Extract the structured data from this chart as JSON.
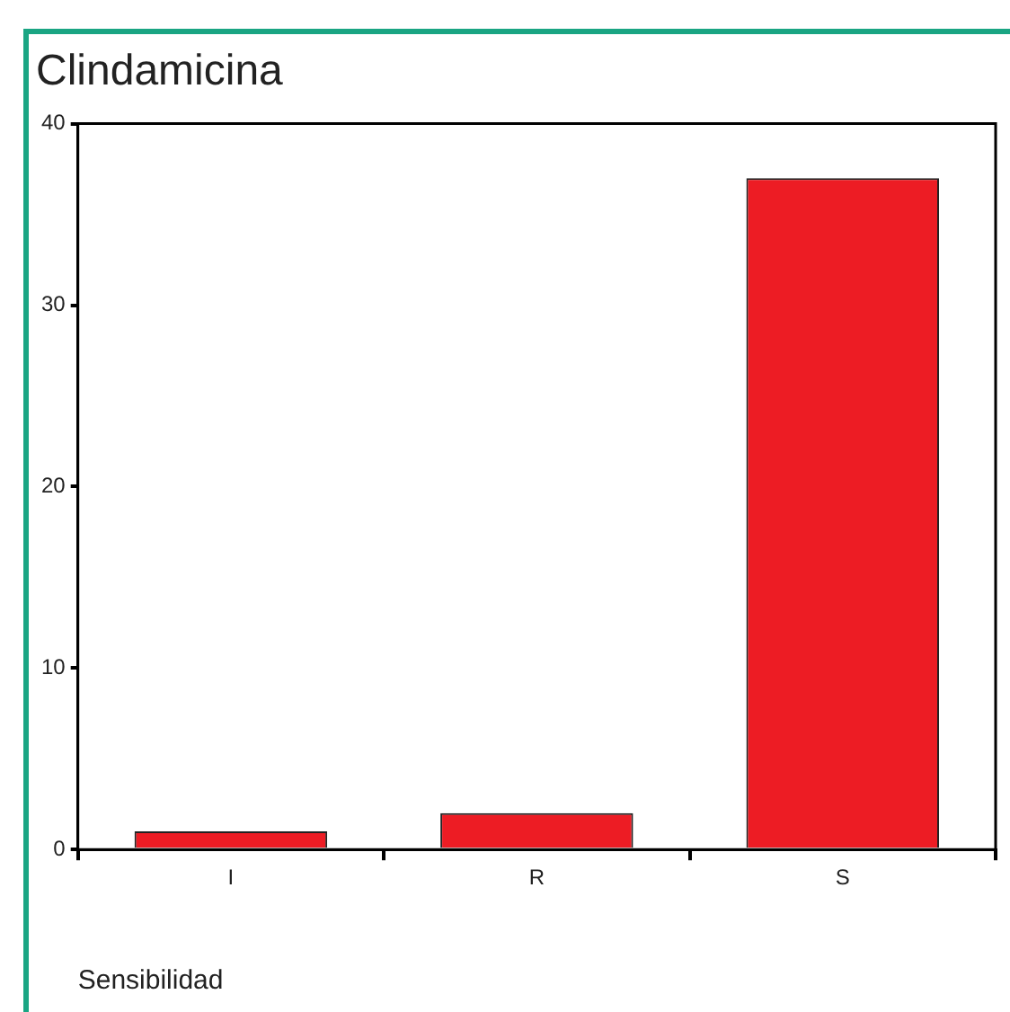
{
  "chart_data": {
    "type": "bar",
    "title": "Clindamicina",
    "xlabel": "Sensibilidad",
    "categories": [
      "I",
      "R",
      "S"
    ],
    "values": [
      1,
      2,
      37
    ],
    "color": "#ed1c24",
    "ylim": [
      0,
      40
    ],
    "yticks": [
      0,
      10,
      20,
      30,
      40
    ],
    "grid": false,
    "legend": false
  }
}
